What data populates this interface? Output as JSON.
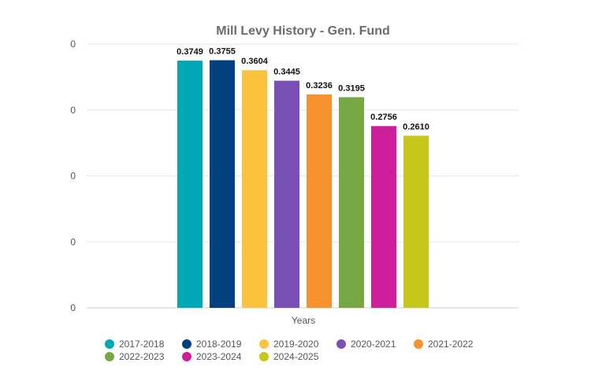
{
  "chart_data": {
    "type": "bar",
    "title": "Mill Levy History - Gen. Fund",
    "xlabel": "Years",
    "ylabel": "",
    "yticks": [
      "0",
      "0",
      "0",
      "0",
      "0"
    ],
    "ylim": [
      0,
      0.4
    ],
    "grid": true,
    "legend_position": "bottom",
    "categories": [
      "2017-2018",
      "2018-2019",
      "2019-2020",
      "2020-2021",
      "2021-2022",
      "2022-2023",
      "2023-2024",
      "2024-2025"
    ],
    "values": [
      0.3749,
      0.3755,
      0.3604,
      0.3445,
      0.3236,
      0.3195,
      0.2756,
      0.261
    ],
    "value_labels": [
      "0.3749",
      "0.3755",
      "0.3604",
      "0.3445",
      "0.3236",
      "0.3195",
      "0.2756",
      "0.2610"
    ],
    "colors": [
      "#00a9b5",
      "#043f7f",
      "#fbc33d",
      "#7950b5",
      "#f7922e",
      "#76a943",
      "#cf1e9b",
      "#c6c718"
    ]
  }
}
